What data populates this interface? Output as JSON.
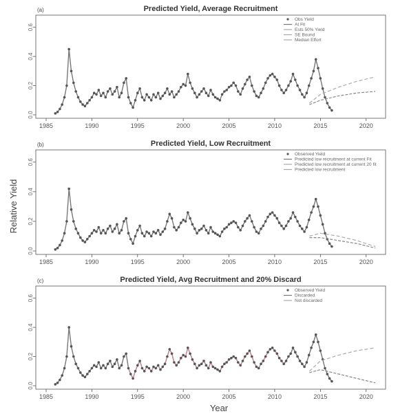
{
  "figure": {
    "xlabel": "Year",
    "ylabel": "Relative Yield"
  },
  "colors": {
    "observed": "#555555",
    "fit": "#777777",
    "proj_a": "#aaaaaa",
    "proj_b": "#888888",
    "pink": "#c98a96"
  },
  "chart_data": [
    {
      "type": "line",
      "panel": "(a)",
      "title": "Predicted Yield, Average Recruitment",
      "xlim": [
        1985,
        2021
      ],
      "ylim": [
        0,
        0.65
      ],
      "xticks": [
        "1985",
        "1990",
        "1995",
        "2000",
        "2005",
        "2010",
        "2015",
        "2020"
      ],
      "yticks": [
        "0.0",
        "0.2",
        "0.4",
        "0.6"
      ],
      "legend_position": "top-right",
      "legend": [
        "Obs Yield",
        "At Fit",
        "Ests 50% Yield",
        "SE Bound",
        "Median Effort"
      ],
      "observed": {
        "x_start": 1986.0,
        "step": 0.25,
        "values": [
          0.01,
          0.02,
          0.04,
          0.07,
          0.12,
          0.2,
          0.45,
          0.3,
          0.22,
          0.16,
          0.12,
          0.09,
          0.07,
          0.06,
          0.08,
          0.1,
          0.12,
          0.15,
          0.14,
          0.17,
          0.13,
          0.15,
          0.12,
          0.16,
          0.18,
          0.14,
          0.16,
          0.19,
          0.12,
          0.15,
          0.22,
          0.25,
          0.12,
          0.08,
          0.05,
          0.1,
          0.15,
          0.18,
          0.12,
          0.1,
          0.14,
          0.12,
          0.1,
          0.14,
          0.12,
          0.15,
          0.11,
          0.13,
          0.15,
          0.18,
          0.14,
          0.16,
          0.12,
          0.14,
          0.16,
          0.19,
          0.21,
          0.2,
          0.28,
          0.22,
          0.18,
          0.15,
          0.12,
          0.14,
          0.16,
          0.18,
          0.15,
          0.13,
          0.17,
          0.14,
          0.12,
          0.11,
          0.1,
          0.14,
          0.16,
          0.17,
          0.19,
          0.2,
          0.22,
          0.2,
          0.16,
          0.14,
          0.18,
          0.21,
          0.24,
          0.26,
          0.2,
          0.16,
          0.13,
          0.12,
          0.15,
          0.18,
          0.22,
          0.25,
          0.27,
          0.28,
          0.26,
          0.24,
          0.2,
          0.17,
          0.15,
          0.17,
          0.2,
          0.23,
          0.28,
          0.24,
          0.2,
          0.17,
          0.14,
          0.12,
          0.15,
          0.2,
          0.25,
          0.3,
          0.38,
          0.32,
          0.25,
          0.18,
          0.12,
          0.08,
          0.05,
          0.03
        ]
      },
      "projections": [
        {
          "x": [
            2013.8,
            2015,
            2017,
            2019,
            2021
          ],
          "y": [
            0.08,
            0.14,
            0.19,
            0.23,
            0.26
          ]
        },
        {
          "x": [
            2013.8,
            2015,
            2017,
            2019,
            2021
          ],
          "y": [
            0.07,
            0.1,
            0.13,
            0.15,
            0.16
          ]
        }
      ]
    },
    {
      "type": "line",
      "panel": "(b)",
      "title": "Predicted Yield, Low Recruitment",
      "xlim": [
        1985,
        2021
      ],
      "ylim": [
        0,
        0.65
      ],
      "xticks": [
        "1985",
        "1990",
        "1995",
        "2000",
        "2005",
        "2010",
        "2015",
        "2020"
      ],
      "yticks": [
        "0.0",
        "0.2",
        "0.4",
        "0.6"
      ],
      "legend_position": "top-right",
      "legend": [
        "Observed Yield",
        "Predicted low recruitment at current Fit",
        "Predicted low recruitment at current 20 fit",
        "Predicted low recruitment"
      ],
      "observed": {
        "x_start": 1986.0,
        "step": 0.25,
        "values": [
          0.01,
          0.02,
          0.04,
          0.07,
          0.12,
          0.2,
          0.42,
          0.28,
          0.2,
          0.15,
          0.12,
          0.09,
          0.07,
          0.06,
          0.08,
          0.1,
          0.12,
          0.14,
          0.13,
          0.16,
          0.12,
          0.14,
          0.12,
          0.15,
          0.17,
          0.13,
          0.15,
          0.18,
          0.12,
          0.14,
          0.2,
          0.22,
          0.12,
          0.08,
          0.05,
          0.1,
          0.14,
          0.17,
          0.12,
          0.1,
          0.13,
          0.12,
          0.1,
          0.13,
          0.12,
          0.14,
          0.11,
          0.13,
          0.15,
          0.2,
          0.25,
          0.22,
          0.16,
          0.14,
          0.16,
          0.19,
          0.21,
          0.2,
          0.26,
          0.22,
          0.18,
          0.15,
          0.12,
          0.14,
          0.15,
          0.17,
          0.14,
          0.12,
          0.16,
          0.13,
          0.12,
          0.11,
          0.1,
          0.13,
          0.15,
          0.16,
          0.18,
          0.19,
          0.2,
          0.19,
          0.16,
          0.14,
          0.17,
          0.2,
          0.22,
          0.24,
          0.2,
          0.16,
          0.13,
          0.12,
          0.15,
          0.17,
          0.2,
          0.23,
          0.25,
          0.26,
          0.24,
          0.22,
          0.19,
          0.17,
          0.15,
          0.17,
          0.2,
          0.22,
          0.26,
          0.23,
          0.2,
          0.17,
          0.15,
          0.13,
          0.16,
          0.21,
          0.26,
          0.3,
          0.35,
          0.3,
          0.24,
          0.18,
          0.12,
          0.08,
          0.05,
          0.03
        ]
      },
      "projections": [
        {
          "x": [
            2013.8,
            2015,
            2017,
            2019,
            2021
          ],
          "y": [
            0.1,
            0.12,
            0.1,
            0.07,
            0.03
          ]
        },
        {
          "x": [
            2013.8,
            2015,
            2017,
            2019,
            2021
          ],
          "y": [
            0.09,
            0.09,
            0.07,
            0.05,
            0.02
          ]
        }
      ]
    },
    {
      "type": "line",
      "panel": "(c)",
      "title": "Predicted Yield, Avg Recruitment and 20% Discard",
      "xlim": [
        1985,
        2021
      ],
      "ylim": [
        0,
        0.65
      ],
      "xticks": [
        "1985",
        "1990",
        "1995",
        "2000",
        "2005",
        "2010",
        "2015",
        "2020"
      ],
      "yticks": [
        "0.0",
        "0.2",
        "0.4",
        "0.6"
      ],
      "legend_position": "top-right",
      "legend": [
        "Observed Yield",
        "Discarded",
        "Not discarded"
      ],
      "observed": {
        "x_start": 1986.0,
        "step": 0.25,
        "values": [
          0.01,
          0.02,
          0.04,
          0.07,
          0.12,
          0.2,
          0.4,
          0.27,
          0.2,
          0.15,
          0.12,
          0.09,
          0.07,
          0.06,
          0.08,
          0.1,
          0.12,
          0.14,
          0.13,
          0.16,
          0.12,
          0.14,
          0.12,
          0.15,
          0.17,
          0.13,
          0.15,
          0.18,
          0.12,
          0.14,
          0.2,
          0.22,
          0.12,
          0.08,
          0.05,
          0.1,
          0.14,
          0.17,
          0.12,
          0.1,
          0.13,
          0.12,
          0.1,
          0.13,
          0.12,
          0.14,
          0.11,
          0.13,
          0.15,
          0.2,
          0.25,
          0.22,
          0.16,
          0.14,
          0.16,
          0.19,
          0.21,
          0.2,
          0.26,
          0.22,
          0.18,
          0.15,
          0.12,
          0.14,
          0.15,
          0.17,
          0.14,
          0.12,
          0.16,
          0.13,
          0.12,
          0.11,
          0.1,
          0.13,
          0.15,
          0.16,
          0.18,
          0.19,
          0.2,
          0.19,
          0.16,
          0.14,
          0.17,
          0.2,
          0.22,
          0.24,
          0.2,
          0.16,
          0.13,
          0.12,
          0.15,
          0.17,
          0.2,
          0.23,
          0.25,
          0.26,
          0.24,
          0.22,
          0.19,
          0.17,
          0.15,
          0.17,
          0.2,
          0.22,
          0.26,
          0.23,
          0.2,
          0.17,
          0.15,
          0.13,
          0.16,
          0.21,
          0.26,
          0.3,
          0.35,
          0.3,
          0.24,
          0.18,
          0.12,
          0.08,
          0.05,
          0.03
        ]
      },
      "highlight_range": [
        1994,
        2011
      ],
      "projections": [
        {
          "x": [
            2013.8,
            2015,
            2017,
            2019,
            2021
          ],
          "y": [
            0.1,
            0.17,
            0.21,
            0.24,
            0.26
          ]
        },
        {
          "x": [
            2013.8,
            2015,
            2017,
            2019,
            2021
          ],
          "y": [
            0.09,
            0.11,
            0.08,
            0.05,
            0.02
          ]
        }
      ]
    }
  ]
}
